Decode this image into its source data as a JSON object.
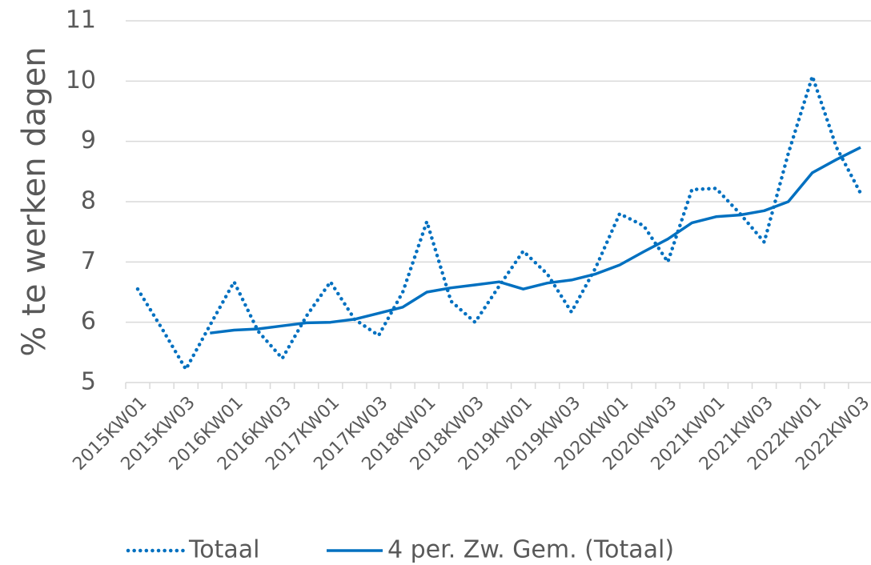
{
  "chart_data": {
    "type": "line",
    "y_label": "% te werken dagen",
    "categories": [
      "2015KW01",
      null,
      "2015KW03",
      null,
      "2016KW01",
      null,
      "2016KW03",
      null,
      "2017KW01",
      null,
      "2017KW03",
      null,
      "2018KW01",
      null,
      "2018KW03",
      null,
      "2019KW01",
      null,
      "2019KW03",
      null,
      "2020KW01",
      null,
      "2020KW03",
      null,
      "2021KW01",
      null,
      "2021KW03",
      null,
      "2022KW01",
      null,
      "2022KW03"
    ],
    "series": [
      {
        "name": "Totaal",
        "color": "#0070c0",
        "dash": "dotted",
        "values": [
          6.55,
          5.9,
          5.22,
          5.95,
          6.67,
          5.85,
          5.4,
          6.1,
          6.67,
          6.05,
          5.78,
          6.5,
          7.67,
          6.35,
          6.0,
          6.6,
          7.18,
          6.8,
          6.17,
          6.9,
          7.8,
          7.6,
          7.0,
          8.2,
          8.22,
          7.8,
          7.33,
          8.8,
          10.08,
          8.9,
          8.14
        ]
      },
      {
        "name": "4 per. Zw. Gem. (Totaal)",
        "color": "#0070c0",
        "dash": "solid",
        "values": [
          null,
          null,
          null,
          5.82,
          5.87,
          5.89,
          5.94,
          5.99,
          6.0,
          6.05,
          6.15,
          6.25,
          6.5,
          6.57,
          6.62,
          6.67,
          6.55,
          6.65,
          6.7,
          6.8,
          6.95,
          7.17,
          7.38,
          7.65,
          7.75,
          7.78,
          7.85,
          8.0,
          8.48,
          8.7,
          8.9
        ]
      }
    ],
    "ylim": [
      5,
      11
    ],
    "yticks": [
      5,
      6,
      7,
      8,
      9,
      10,
      11
    ],
    "grid": true,
    "legend": "bottom"
  }
}
